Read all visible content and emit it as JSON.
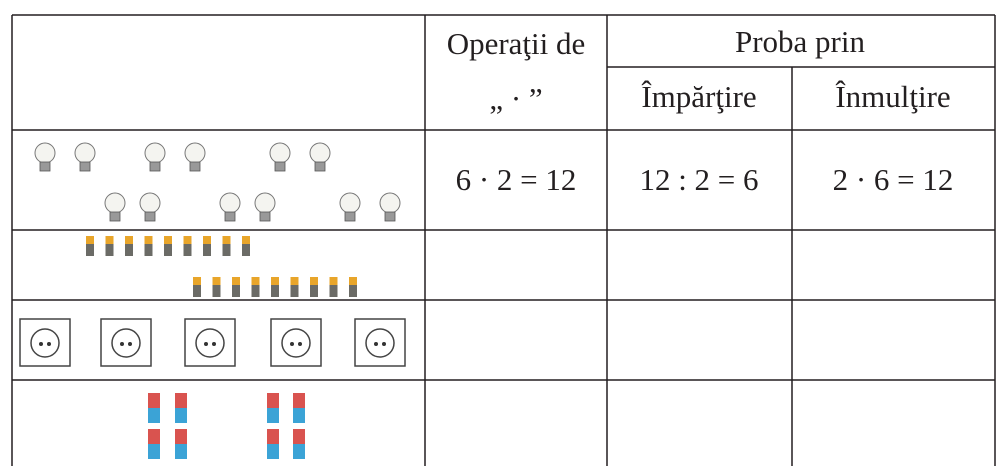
{
  "table": {
    "header": {
      "operations": [
        "Operaţii de",
        "„ · ”"
      ],
      "check": "Proba prin",
      "division": "Împărţire",
      "multiplication": "Înmulţire"
    },
    "rows": [
      [
        "6 · 2 = 12",
        "12 : 2 = 6",
        "2 · 6 = 12"
      ]
    ]
  }
}
